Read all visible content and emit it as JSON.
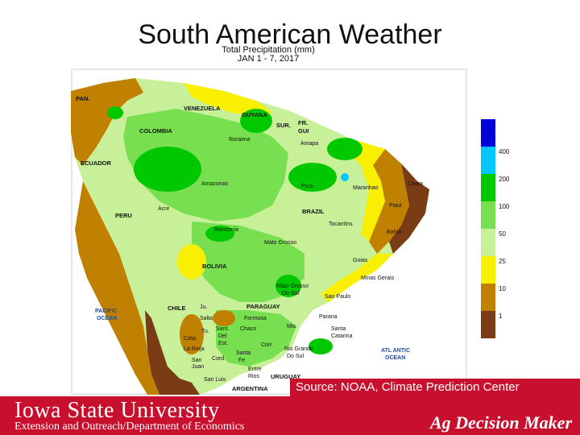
{
  "title": "South American Weather",
  "map": {
    "caption_line1": "Total Precipitation (mm)",
    "caption_line2": "JAN 1 - 7, 2017",
    "oceans": {
      "pacific_line1": "PACIFIC",
      "pacific_line2": "OCEAN",
      "atlantic_line1": "ATL ANTIC",
      "atlantic_line2": "OCEAN"
    },
    "countries": {
      "venezuela": "VENEZUELA",
      "guyana": "GUYANA",
      "sur": "SUR.",
      "fr_gui": "FR.",
      "fr_gui2": "GUI",
      "colombia": "COLOMBIA",
      "ecuador": "ECUADOR",
      "peru": "PERU",
      "brazil": "BRAZIL",
      "bolivia": "BOLIVIA",
      "paraguay": "PARAGUAY",
      "chile": "CHILE",
      "argentina": "ARGENTINA",
      "uruguay": "URUGUAY",
      "pan": "PAN."
    },
    "regions": {
      "roraima": "Roraima",
      "amapa": "Amapa",
      "amazonas": "Amazonas",
      "para": "Para",
      "maranhao": "Maranhao",
      "ceara": "Ceara",
      "piaui": "Piaui",
      "acre": "Acre",
      "rondonia": "Rondonia",
      "tocantins": "Tocantins",
      "bahia": "Bahia",
      "mato_grosso": "Mato Grosso",
      "goias": "Goias",
      "minas_gerais": "Minas Gerais",
      "mato_grosso_do_sul": "Mato Grosso",
      "mato_grosso_do_sul2": "Do Sul",
      "sao_paulo": "Sao Paulo",
      "parana": "Parana",
      "santa_catarina": "Santa",
      "santa_catarina2": "Catarina",
      "rio_grande": "Rio Grande",
      "rio_grande2": "Do Sul",
      "salta": "Salta",
      "formosa": "Formosa",
      "chaco": "Chaco",
      "misiones": "Mis.",
      "corrientes": "Corr.",
      "entre_rios": "Entre",
      "entre_rios2": "Rios",
      "santa_fe": "Santa",
      "santa_fe2": "Fe",
      "cordoba": "Cord.",
      "la_rioja": "La Rioja",
      "san_juan": "San",
      "san_juan2": "Juan",
      "san_luis": "San Luis",
      "tucuman": "Tu.",
      "catamarca": "Cata.",
      "jujuy": "Ju.",
      "santiago": "Sant.",
      "santiago2": "Del",
      "santiago3": "Est.",
      "bsas": "Buenos",
      "bsas2": "Aires"
    }
  },
  "legend": {
    "colors": [
      "#0000d8",
      "#00c8ff",
      "#00c800",
      "#78e050",
      "#c8f098",
      "#f8f000",
      "#c08000",
      "#7a3c14"
    ],
    "ticks": [
      "400",
      "200",
      "100",
      "50",
      "25",
      "10",
      "1"
    ]
  },
  "footer": {
    "university": "Iowa State University",
    "department": "Extension and Outreach/Department of Economics",
    "source": "Source: NOAA, Climate Prediction Center",
    "brand": "Ag Decision Maker"
  }
}
